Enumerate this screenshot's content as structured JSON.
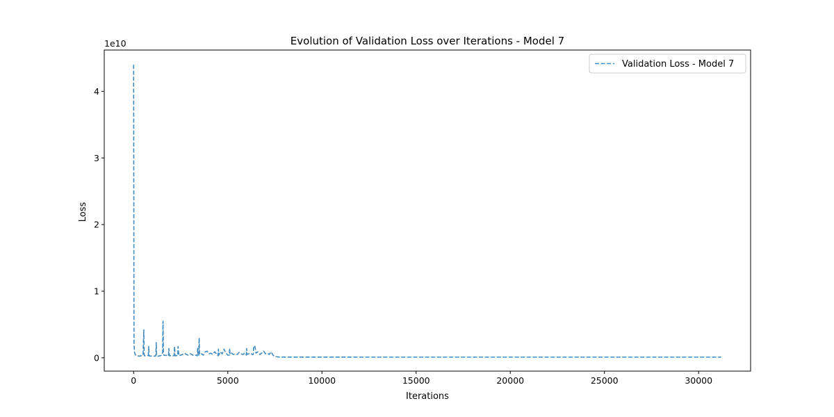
{
  "chart_data": {
    "type": "line",
    "title": "Evolution of Validation Loss over Iterations - Model 7",
    "xlabel": "Iterations",
    "ylabel": "Loss",
    "y_scale_label": "1e10",
    "y_multiplier": 10000000000,
    "xlim": [
      -1560,
      32760
    ],
    "ylim": [
      -2000000000,
      46200000000
    ],
    "x_ticks": [
      0,
      5000,
      10000,
      15000,
      20000,
      25000,
      30000
    ],
    "x_tick_labels": [
      "0",
      "5000",
      "10000",
      "15000",
      "20000",
      "25000",
      "30000"
    ],
    "y_ticks": [
      0,
      10000000000,
      20000000000,
      30000000000,
      40000000000
    ],
    "y_tick_labels": [
      "0",
      "1",
      "2",
      "3",
      "4"
    ],
    "grid": false,
    "legend": {
      "position": "top-right",
      "entries": [
        "Validation Loss - Model 7"
      ]
    },
    "series": [
      {
        "name": "Validation Loss - Model 7",
        "color": "#1f77b4",
        "line_style": "dashed",
        "x": [
          0,
          20,
          50,
          100,
          200,
          300,
          400,
          500,
          540,
          560,
          580,
          600,
          700,
          780,
          800,
          820,
          900,
          1000,
          1100,
          1180,
          1200,
          1220,
          1300,
          1400,
          1500,
          1540,
          1560,
          1580,
          1600,
          1700,
          1800,
          1850,
          1870,
          1900,
          2000,
          2100,
          2150,
          2170,
          2200,
          2300,
          2340,
          2360,
          2400,
          2500,
          2600,
          2700,
          2800,
          2900,
          3000,
          3100,
          3200,
          3300,
          3380,
          3400,
          3420,
          3460,
          3480,
          3500,
          3600,
          3700,
          3800,
          3900,
          4000,
          4100,
          4200,
          4300,
          4400,
          4480,
          4500,
          4520,
          4600,
          4700,
          4800,
          4900,
          5000,
          5080,
          5100,
          5120,
          5200,
          5300,
          5400,
          5500,
          5600,
          5700,
          5800,
          5900,
          5980,
          6000,
          6020,
          6100,
          6200,
          6300,
          6350,
          6380,
          6420,
          6450,
          6500,
          6600,
          6700,
          6800,
          6900,
          7000,
          7100,
          7200,
          7300,
          7400,
          7500,
          7600,
          7700,
          8000,
          9000,
          10000,
          12000,
          15000,
          20000,
          25000,
          30000,
          31200
        ],
        "y": [
          44000000000,
          2000000000,
          800000000,
          400000000,
          300000000,
          250000000,
          300000000,
          400000000,
          4200000000,
          500000000,
          300000000,
          300000000,
          300000000,
          350000000,
          1700000000,
          300000000,
          250000000,
          300000000,
          250000000,
          300000000,
          2300000000,
          300000000,
          250000000,
          300000000,
          400000000,
          800000000,
          5500000000,
          800000000,
          400000000,
          350000000,
          400000000,
          300000000,
          1400000000,
          300000000,
          350000000,
          300000000,
          350000000,
          1700000000,
          300000000,
          350000000,
          300000000,
          1700000000,
          300000000,
          400000000,
          500000000,
          700000000,
          500000000,
          400000000,
          600000000,
          500000000,
          300000000,
          400000000,
          300000000,
          1500000000,
          400000000,
          400000000,
          3000000000,
          500000000,
          600000000,
          400000000,
          900000000,
          1000000000,
          600000000,
          700000000,
          500000000,
          900000000,
          600000000,
          300000000,
          1300000000,
          400000000,
          900000000,
          600000000,
          1300000000,
          700000000,
          400000000,
          400000000,
          1400000000,
          500000000,
          700000000,
          500000000,
          600000000,
          500000000,
          800000000,
          600000000,
          500000000,
          700000000,
          400000000,
          1400000000,
          500000000,
          600000000,
          700000000,
          500000000,
          500000000,
          1800000000,
          1800000000,
          1600000000,
          700000000,
          900000000,
          500000000,
          700000000,
          1000000000,
          600000000,
          700000000,
          500000000,
          900000000,
          400000000,
          200000000,
          150000000,
          120000000,
          110000000,
          110000000,
          110000000,
          100000000,
          100000000,
          100000000,
          100000000,
          100000000,
          100000000
        ]
      }
    ]
  }
}
